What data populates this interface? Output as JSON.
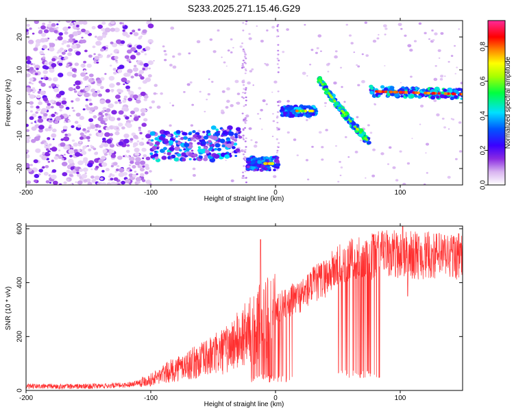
{
  "title": "S233.2025.271.15.46.G29",
  "chart_data": [
    {
      "type": "heatmap",
      "xlabel": "Height of straight line (km)",
      "ylabel": "Frequency (Hz)",
      "xlim": [
        -200,
        150
      ],
      "ylim": [
        -25,
        25
      ],
      "xticks": [
        -200,
        -100,
        0,
        100
      ],
      "yticks": [
        -20,
        -10,
        0,
        10,
        20
      ],
      "colorbar": {
        "label": "Normalized spectral amplitude",
        "range": [
          0.0,
          0.95
        ],
        "ticks": [
          "0.0",
          "0.2",
          "0.4",
          "0.6",
          "0.8"
        ],
        "colormap": "white-purple-blue-cyan-green-yellow-red-magenta"
      },
      "features": [
        {
          "name": "noise band",
          "x_range": [
            -200,
            -100
          ],
          "y_range": [
            -25,
            25
          ],
          "amplitude": 0.1
        },
        {
          "name": "cluster A",
          "x_range": [
            -100,
            -28
          ],
          "center_freq": -13,
          "amplitude": 0.25
        },
        {
          "name": "cluster B",
          "x_range": [
            -22,
            2
          ],
          "center_freq": -18.5,
          "amplitude": 0.55
        },
        {
          "name": "segment C",
          "x_range": [
            5,
            33
          ],
          "center_freq": -2.5,
          "amplitude": 0.6
        },
        {
          "name": "chirp D",
          "x_range": [
            35,
            75
          ],
          "freq_range": [
            7,
            -12
          ],
          "amplitude": 0.6
        },
        {
          "name": "segment E",
          "x_range": [
            75,
            150
          ],
          "center_freq": 3.5,
          "amplitude": 0.75
        }
      ]
    },
    {
      "type": "line",
      "xlabel": "Height of straight line (km)",
      "ylabel": "SNR (10 * v/v)",
      "xlim": [
        -200,
        150
      ],
      "ylim": [
        0,
        610
      ],
      "xticks": [
        -200,
        -100,
        0,
        100
      ],
      "yticks": [
        0,
        200,
        400,
        600
      ],
      "color": "#ff3030",
      "trend": {
        "x": [
          -200,
          -150,
          -120,
          -100,
          -80,
          -60,
          -40,
          -20,
          0,
          10,
          20,
          30,
          40,
          50,
          60,
          70,
          80,
          90,
          100,
          120,
          150
        ],
        "y": [
          15,
          15,
          20,
          40,
          80,
          110,
          150,
          220,
          300,
          330,
          350,
          390,
          420,
          460,
          480,
          490,
          500,
          510,
          505,
          500,
          500
        ]
      },
      "dropouts": [
        {
          "x_range": [
            -20,
            15
          ],
          "min": 30
        },
        {
          "x_range": [
            50,
            85
          ],
          "min": 45
        }
      ],
      "peaks": [
        {
          "x": -12,
          "y": 560
        },
        {
          "x": 102,
          "y": 608
        },
        {
          "x": 106,
          "y": 350
        }
      ]
    }
  ]
}
